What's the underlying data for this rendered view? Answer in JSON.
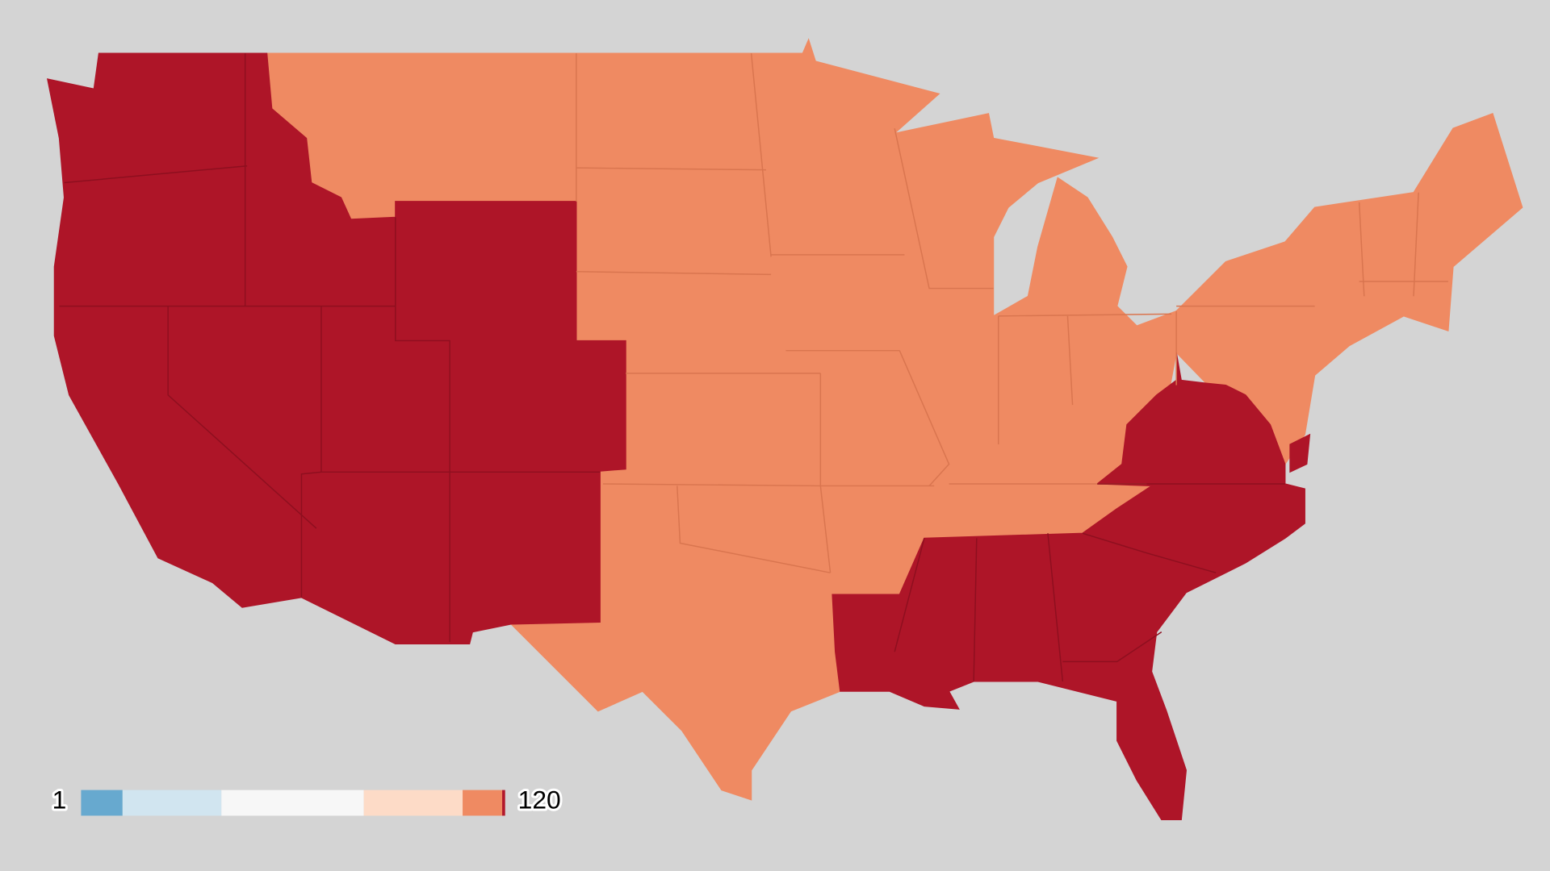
{
  "map": {
    "region_colors": [
      "#ef8a62",
      "#ae1528"
    ],
    "legend": {
      "min": 1,
      "max": 120,
      "colors": [
        "#67a9cf",
        "#d1e5f0",
        "#f7f7f7",
        "#fddbc7",
        "#ef8a62",
        "#b2182b"
      ]
    }
  }
}
